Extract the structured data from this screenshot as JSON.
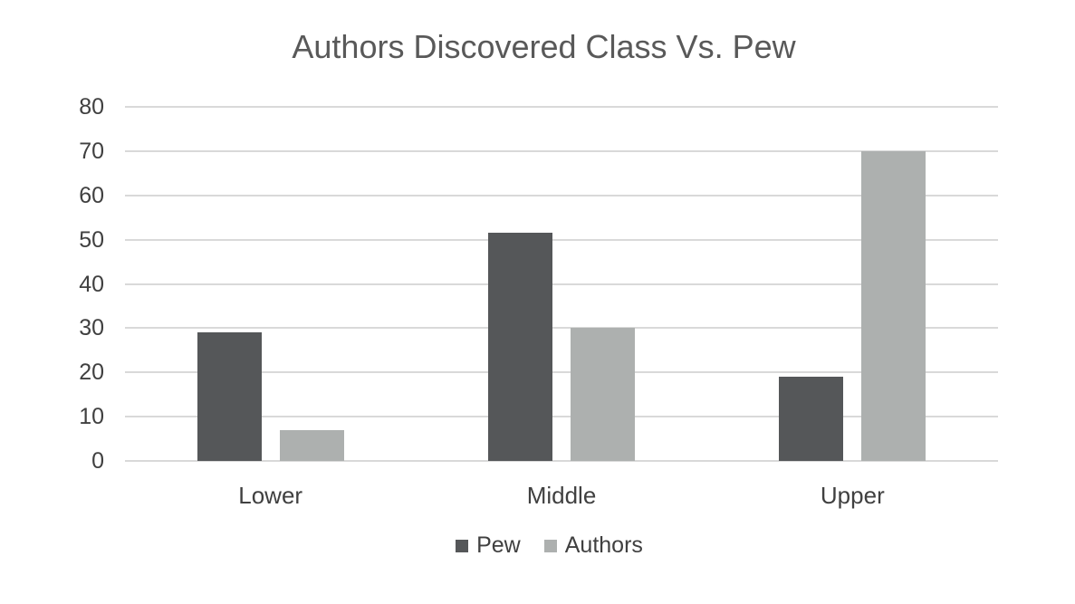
{
  "title": "Authors Discovered Class Vs. Pew",
  "chart_data": {
    "type": "bar",
    "title": "Authors Discovered Class Vs. Pew",
    "categories": [
      "Lower",
      "Middle",
      "Upper"
    ],
    "series": [
      {
        "name": "Pew",
        "color": "#555759",
        "values": [
          29,
          51.5,
          19
        ]
      },
      {
        "name": "Authors",
        "color": "#adb0af",
        "values": [
          7,
          30,
          70
        ]
      }
    ],
    "xlabel": "",
    "ylabel": "",
    "ylim": [
      0,
      80
    ],
    "yticks": [
      0,
      10,
      20,
      30,
      40,
      50,
      60,
      70,
      80
    ],
    "grid": true,
    "legend_position": "bottom"
  },
  "colors": {
    "grid": "#d9d9d9",
    "axis_text": "#404040",
    "title_text": "#595959",
    "background": "#ffffff"
  }
}
